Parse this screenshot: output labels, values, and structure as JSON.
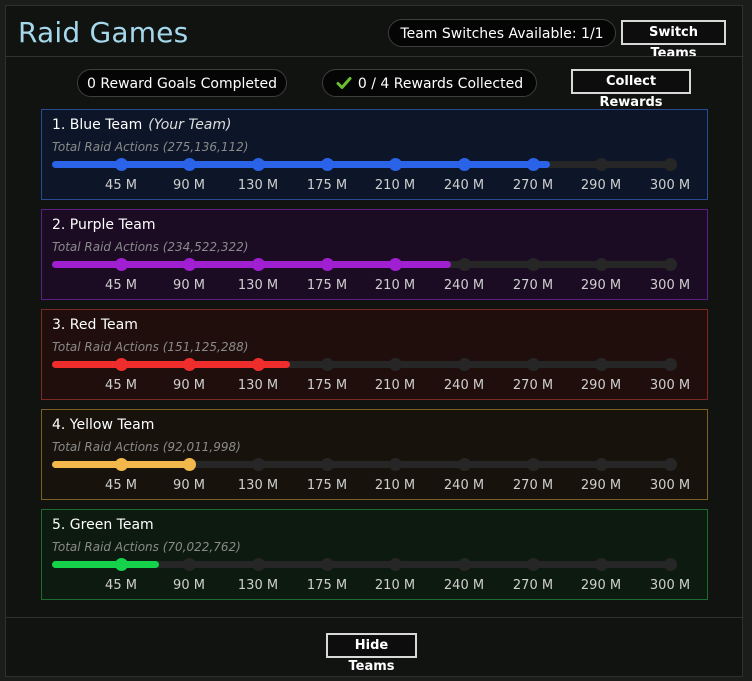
{
  "header": {
    "title": "Raid Games",
    "switches_label": "Team Switches Available: 1/1",
    "switch_button": "Switch Teams"
  },
  "summary": {
    "goals_completed": "0 Reward Goals Completed",
    "rewards_collected": "0 / 4 Rewards Collected",
    "collect_button": "Collect Rewards"
  },
  "milestones": {
    "labels": [
      "45 M",
      "90 M",
      "130 M",
      "175 M",
      "210 M",
      "240 M",
      "270 M",
      "290 M",
      "300 M"
    ],
    "values_m": [
      45,
      90,
      130,
      175,
      210,
      240,
      270,
      290,
      300
    ]
  },
  "teams": [
    {
      "name": "1. Blue Team",
      "tag": "(Your Team)",
      "actions": "Total Raid Actions (275,136,112)",
      "progress_m": 275.1,
      "color": "#2b63e8",
      "border": "#2a4a92",
      "bg": "#0c1628"
    },
    {
      "name": "2. Purple Team",
      "tag": "",
      "actions": "Total Raid Actions (234,522,322)",
      "progress_m": 234.5,
      "color": "#a01fd0",
      "border": "#5a2185",
      "bg": "#1b0c24"
    },
    {
      "name": "3. Red Team",
      "tag": "",
      "actions": "Total Raid Actions (151,125,288)",
      "progress_m": 151.1,
      "color": "#ef2d2d",
      "border": "#7a2a24",
      "bg": "#200e0c"
    },
    {
      "name": "4. Yellow Team",
      "tag": "",
      "actions": "Total Raid Actions (92,011,998)",
      "progress_m": 92.0,
      "color": "#f2b84b",
      "border": "#7c6022",
      "bg": "#17130c"
    },
    {
      "name": "5. Green Team",
      "tag": "",
      "actions": "Total Raid Actions (70,022,762)",
      "progress_m": 70.0,
      "color": "#15d24a",
      "border": "#1f6a2f",
      "bg": "#0d1a10"
    }
  ],
  "footer": {
    "hide_button": "Hide Teams"
  },
  "colors": {
    "title": "#a6d8ec",
    "check": "#6bbf2e"
  },
  "icons": {
    "check": "check-icon"
  }
}
